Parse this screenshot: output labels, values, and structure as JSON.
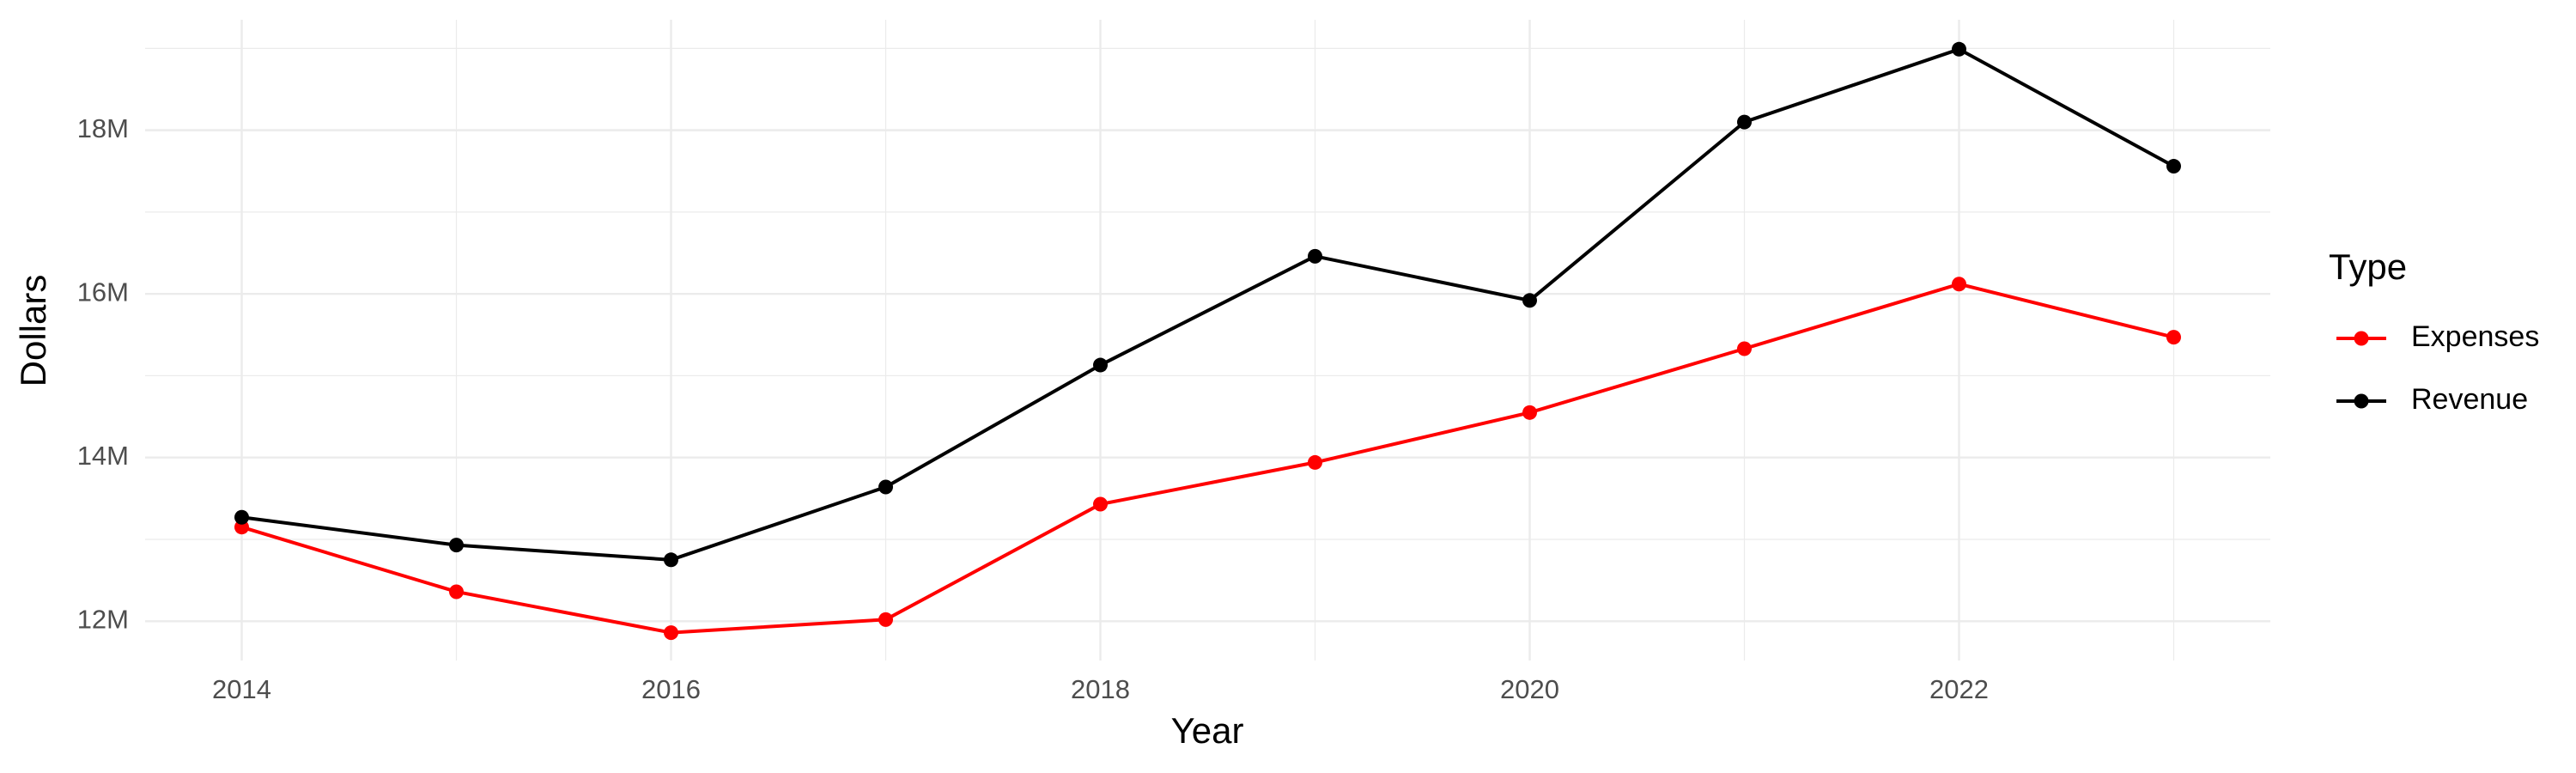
{
  "chart_data": {
    "type": "line",
    "x_label": "Year",
    "y_label": "Dollars",
    "legend_title": "Type",
    "legend_position": "right",
    "grid": true,
    "x": [
      2014,
      2015,
      2016,
      2017,
      2018,
      2019,
      2020,
      2021,
      2022,
      2023
    ],
    "xlim": [
      2013.55,
      2023.45
    ],
    "xticks": [
      2014,
      2016,
      2018,
      2020,
      2022
    ],
    "ylim": [
      11520000,
      19350000
    ],
    "yticks": [
      {
        "value": 12000000,
        "label": "12M"
      },
      {
        "value": 14000000,
        "label": "14M"
      },
      {
        "value": 16000000,
        "label": "16M"
      },
      {
        "value": 18000000,
        "label": "18M"
      }
    ],
    "series": [
      {
        "name": "Expenses",
        "color": "#ff0000",
        "values": [
          13150000,
          12360000,
          11860000,
          12020000,
          13430000,
          13940000,
          14550000,
          15330000,
          16120000,
          15470000
        ]
      },
      {
        "name": "Revenue",
        "color": "#000000",
        "values": [
          13270000,
          12930000,
          12750000,
          13640000,
          15130000,
          16460000,
          15920000,
          18100000,
          18990000,
          17560000
        ]
      }
    ]
  }
}
